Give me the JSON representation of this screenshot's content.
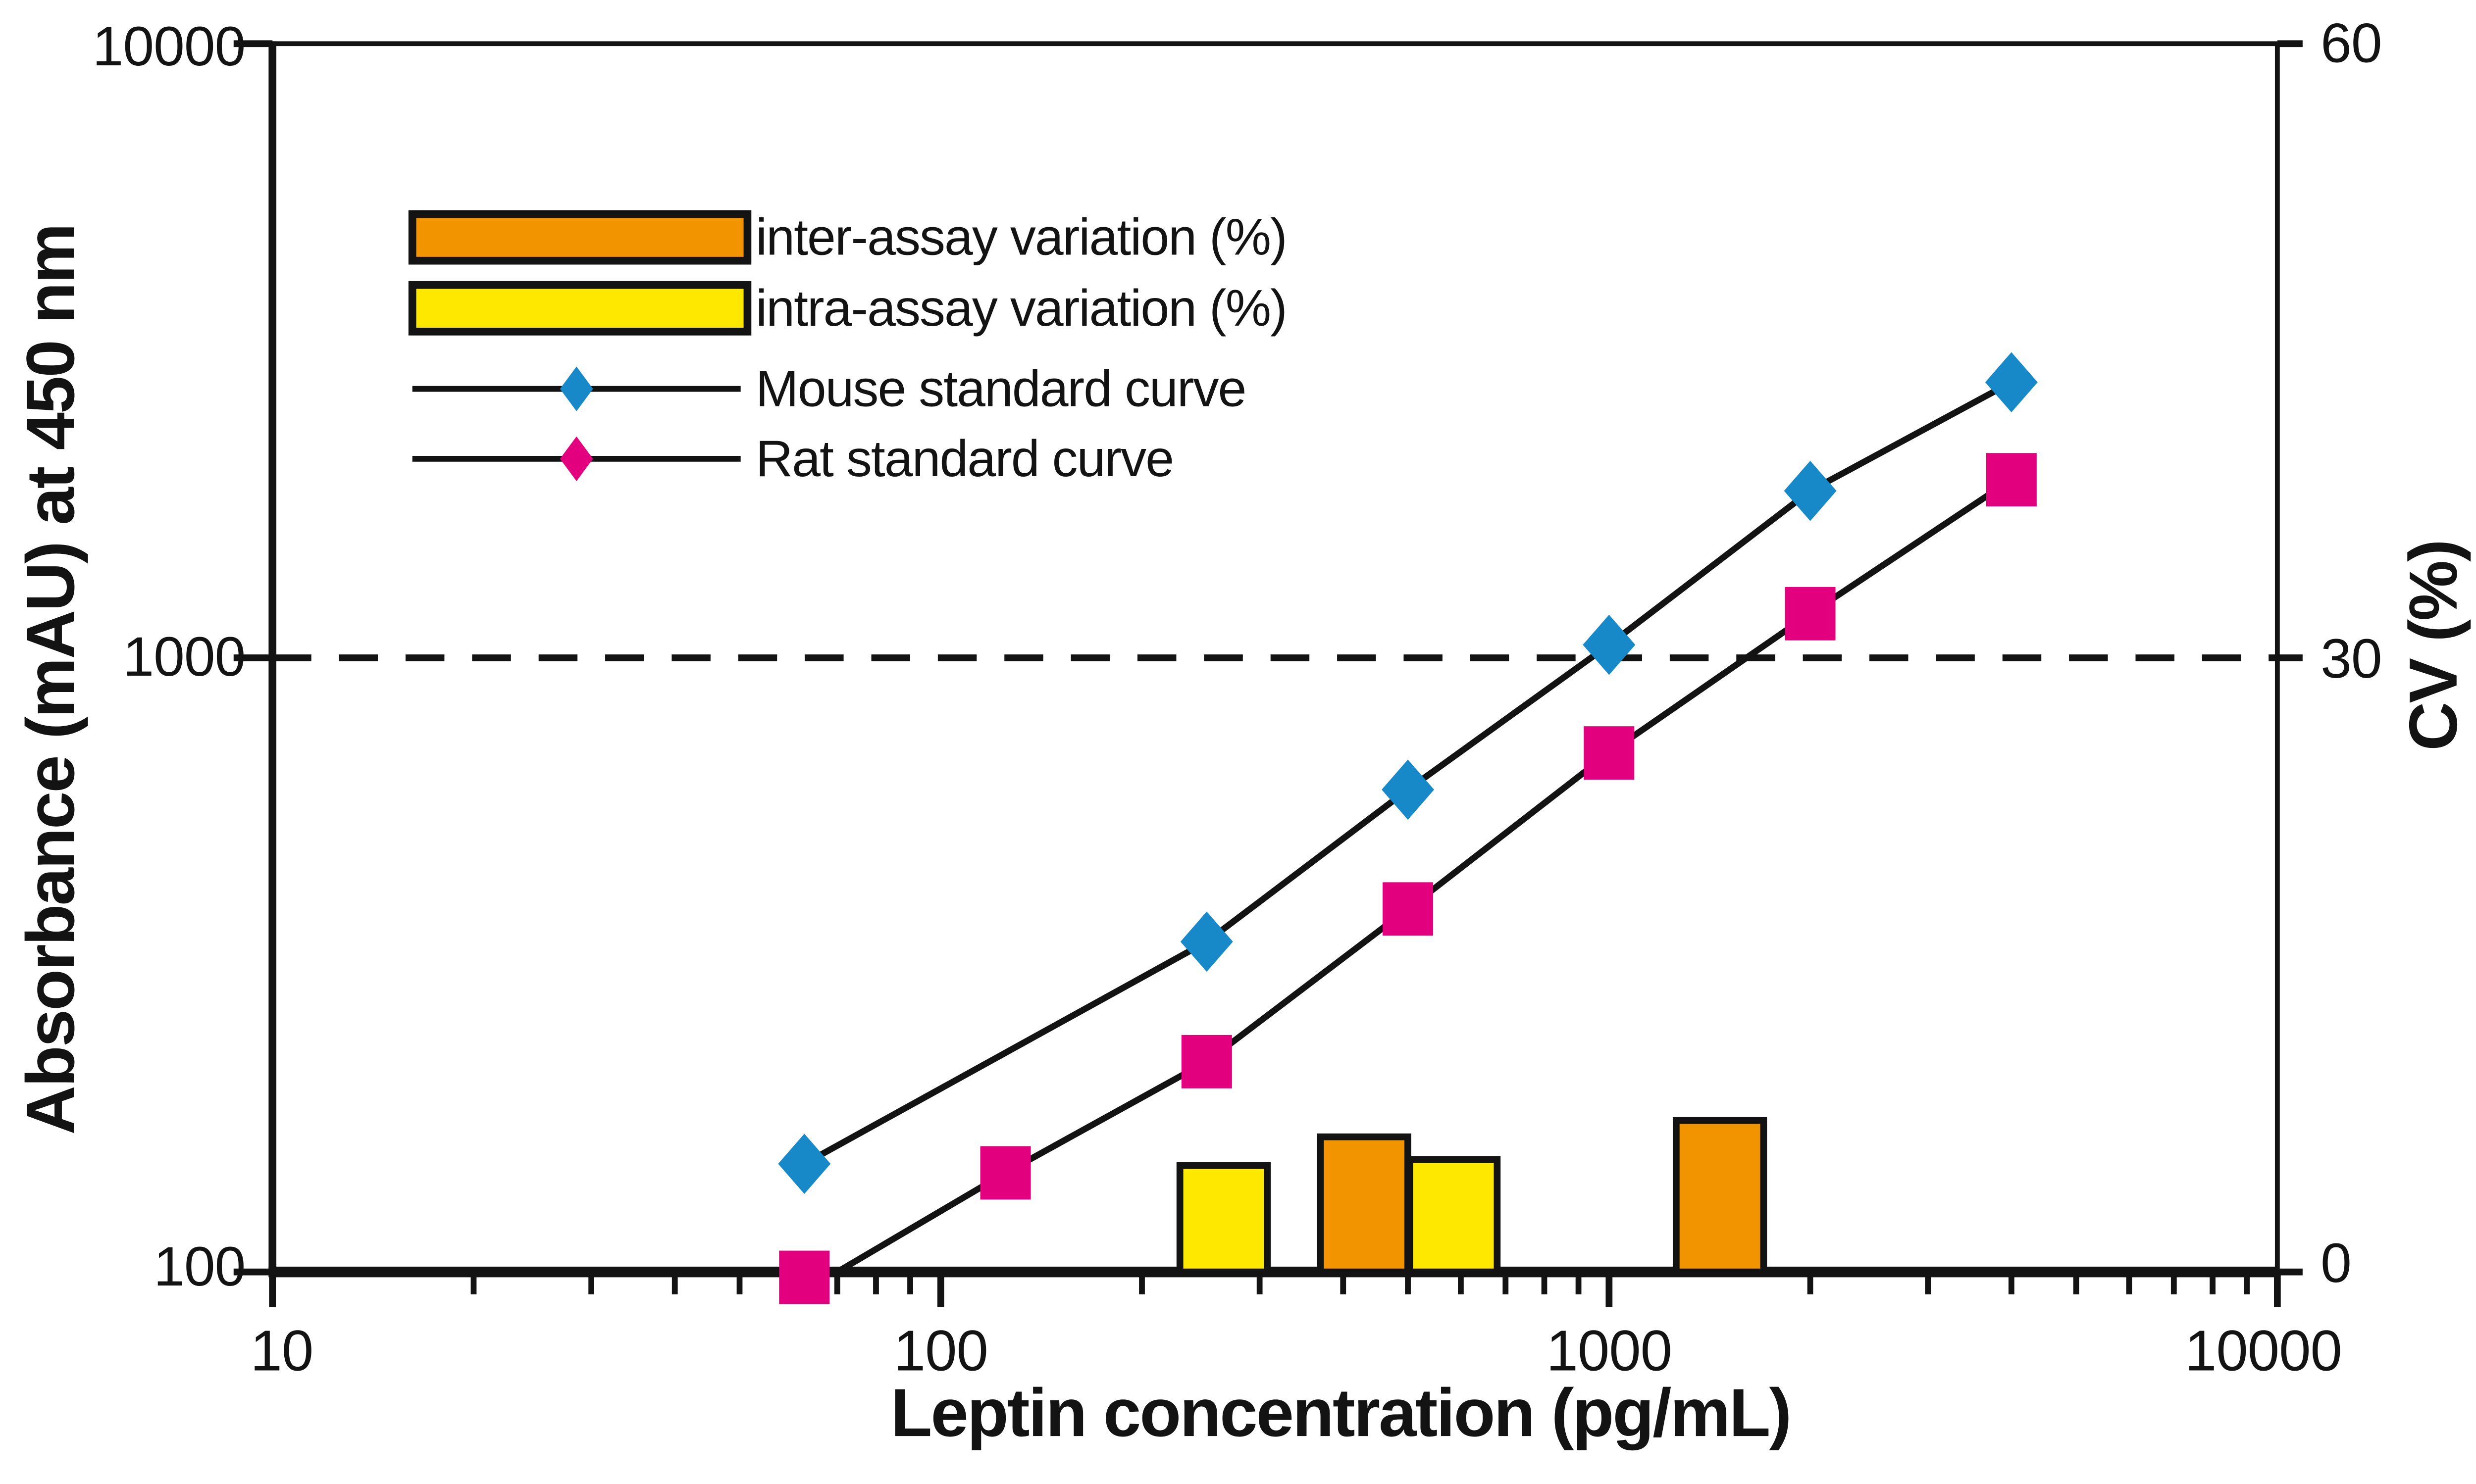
{
  "chart_data": {
    "type": "line",
    "title": "",
    "description": "Mouse and rat leptin ELISA standard curves (log-log) with intra/inter-assay variation bars",
    "colors": {
      "ink": "#131313",
      "mouse_blue": "#1789C8",
      "rat_magenta": "#E3007E",
      "inter_orange": "#F29400",
      "intra_yellow": "#FFE800",
      "background": "#FFFFFF"
    },
    "x_axis": {
      "label": "Leptin concentration (pg/mL)",
      "scale": "log",
      "min": 10,
      "max": 10000,
      "major_ticks": [
        10,
        100,
        1000,
        10000
      ],
      "tick_labels": [
        "10",
        "100",
        "1000",
        "10000"
      ],
      "minor_ticks": "2-9 in each decade"
    },
    "y_axis_left": {
      "label": "Absorbance (mAU) at 450 nm",
      "scale": "log",
      "min": 100,
      "max": 10000,
      "ticks": [
        100,
        1000,
        10000
      ],
      "tick_labels": [
        "100",
        "1000",
        "10000"
      ]
    },
    "y_axis_right": {
      "label": "CV (%)",
      "scale": "linear",
      "min": 0,
      "max": 60,
      "ticks": [
        0,
        30,
        60
      ],
      "tick_labels": [
        "0",
        "30",
        "60"
      ]
    },
    "reference_line": {
      "absorbance": 1000,
      "cv": 30,
      "style": "dashed"
    },
    "series": [
      {
        "name": "Mouse standard curve",
        "color": "#1789C8",
        "marker": "diamond",
        "points": [
          [
            62.5,
            150
          ],
          [
            250,
            345
          ],
          [
            500,
            610
          ],
          [
            1000,
            1050
          ],
          [
            2000,
            1870
          ],
          [
            4000,
            2810
          ]
        ]
      },
      {
        "name": "Rat standard curve",
        "color": "#E3007E",
        "marker": "square",
        "points": [
          [
            62.5,
            98
          ],
          [
            125,
            145
          ],
          [
            250,
            220
          ],
          [
            500,
            390
          ],
          [
            1000,
            700
          ],
          [
            2000,
            1180
          ],
          [
            4000,
            1950
          ]
        ],
        "line_points": [
          [
            70,
            100
          ],
          [
            125,
            145
          ],
          [
            250,
            220
          ],
          [
            500,
            390
          ],
          [
            1000,
            700
          ],
          [
            2000,
            1180
          ],
          [
            4000,
            1950
          ]
        ]
      }
    ],
    "bars": [
      {
        "series": "intra-assay variation (%)",
        "color": "#FFE800",
        "x": 265,
        "cv": 5.2
      },
      {
        "series": "inter-assay variation (%)",
        "color": "#F29400",
        "x": 430,
        "cv": 6.6
      },
      {
        "series": "intra-assay variation (%)",
        "color": "#FFE800",
        "x": 585,
        "cv": 5.5
      },
      {
        "series": "inter-assay variation (%)",
        "color": "#F29400",
        "x": 1465,
        "cv": 7.4
      }
    ],
    "legend": {
      "position": "top-left-inside",
      "entries": [
        {
          "swatch": "bar",
          "color": "#F29400",
          "label": "inter-assay variation (%)"
        },
        {
          "swatch": "bar",
          "color": "#FFE800",
          "label": "intra-assay variation (%)"
        },
        {
          "swatch": "line-diamond",
          "color": "#1789C8",
          "label": "Mouse standard curve"
        },
        {
          "swatch": "line-diamond",
          "color": "#E3007E",
          "label": "Rat standard curve"
        }
      ]
    }
  }
}
